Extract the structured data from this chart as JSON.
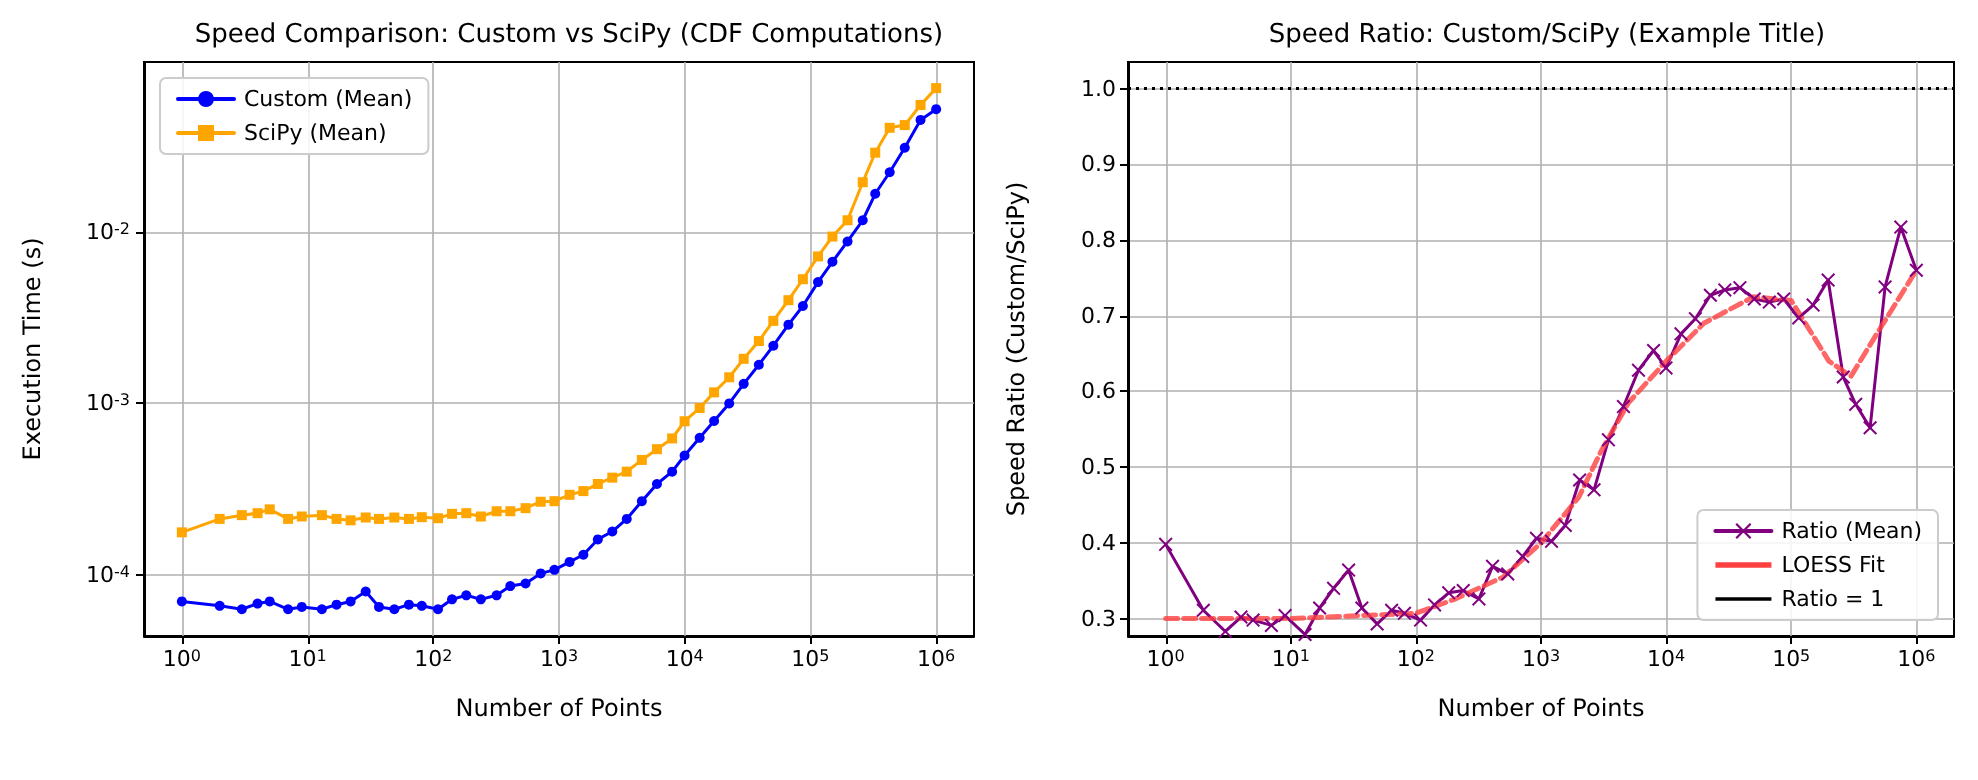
{
  "chart_data": [
    {
      "type": "line",
      "title": "Speed Comparison: Custom vs SciPy (CDF Computations)",
      "xlabel": "Number of Points",
      "ylabel": "Execution Time (s)",
      "x": [
        1,
        2,
        3,
        4,
        5,
        7,
        9,
        13,
        17,
        22,
        29,
        37,
        49,
        64,
        81,
        109,
        141,
        183,
        239,
        319,
        410,
        542,
        715,
        920,
        1214,
        1563,
        2036,
        2654,
        3459,
        4560,
        6013,
        7940,
        9980,
        13150,
        17130,
        22590,
        29450,
        38880,
        50700,
        66840,
        87080,
        114900,
        149600,
        197300,
        260600,
        327600,
        427000,
        562700,
        751300,
        1000000
      ],
      "series": [
        {
          "name": "Custom (Mean)",
          "color": "#0000ff",
          "marker": "circle",
          "values": [
            7e-05,
            6.6e-05,
            6.3e-05,
            6.8e-05,
            7e-05,
            6.3e-05,
            6.5e-05,
            6.3e-05,
            6.7e-05,
            7e-05,
            8e-05,
            6.5e-05,
            6.3e-05,
            6.7e-05,
            6.6e-05,
            6.3e-05,
            7.2e-05,
            7.6e-05,
            7.2e-05,
            7.6e-05,
            8.6e-05,
            8.9e-05,
            0.000102,
            0.000107,
            0.000119,
            0.000131,
            0.000161,
            0.000179,
            0.000212,
            0.000269,
            0.000339,
            0.0004,
            0.000497,
            0.00063,
            0.00079,
            0.001,
            0.0013,
            0.00168,
            0.00217,
            0.00288,
            0.0037,
            0.0051,
            0.0067,
            0.0088,
            0.0117,
            0.0167,
            0.0223,
            0.031,
            0.045,
            0.052
          ]
        },
        {
          "name": "SciPy (Mean)",
          "color": "#ffa500",
          "marker": "square",
          "values": [
            0.000177,
            0.000212,
            0.000223,
            0.000229,
            0.000241,
            0.000212,
            0.000219,
            0.000223,
            0.000212,
            0.000208,
            0.000216,
            0.000212,
            0.000216,
            0.000212,
            0.000217,
            0.000214,
            0.000227,
            0.000229,
            0.000219,
            0.000235,
            0.000235,
            0.000245,
            0.000267,
            0.000269,
            0.000293,
            0.000308,
            0.000339,
            0.000369,
            0.0004,
            0.000468,
            0.000541,
            0.000625,
            0.000787,
            0.00094,
            0.00116,
            0.00142,
            0.00182,
            0.00231,
            0.00303,
            0.004,
            0.0053,
            0.0072,
            0.0094,
            0.0117,
            0.0195,
            0.029,
            0.0405,
            0.042,
            0.055,
            0.069
          ]
        }
      ],
      "log": "xy",
      "xlim": [
        0.5,
        2000000
      ],
      "ylim": [
        4.4e-05,
        0.098
      ],
      "xticks": [
        {
          "value": 1,
          "label": "10$^{0}$"
        },
        {
          "value": 10,
          "label": "10$^{1}$"
        },
        {
          "value": 100,
          "label": "10$^{2}$"
        },
        {
          "value": 1000,
          "label": "10$^{3}$"
        },
        {
          "value": 10000,
          "label": "10$^{4}$"
        },
        {
          "value": 100000,
          "label": "10$^{5}$"
        },
        {
          "value": 1000000,
          "label": "10$^{6}$"
        }
      ],
      "yticks": [
        {
          "value": 0.0001,
          "label": "10$^{-4}$"
        },
        {
          "value": 0.001,
          "label": "10$^{-3}$"
        },
        {
          "value": 0.01,
          "label": "10$^{-2}$"
        }
      ],
      "grid": true,
      "legend": "top left",
      "line_style": "solid"
    },
    {
      "type": "line",
      "title": "Speed Ratio: Custom/SciPy (Example Title)",
      "xlabel": "Number of Points",
      "ylabel": "Speed Ratio (Custom/SciPy)",
      "x": [
        1,
        2,
        3,
        4,
        5,
        7,
        9,
        13,
        17,
        22,
        29,
        37,
        49,
        64,
        81,
        109,
        141,
        183,
        239,
        319,
        410,
        542,
        715,
        920,
        1214,
        1563,
        2036,
        2654,
        3459,
        4560,
        6013,
        7940,
        9980,
        13150,
        17130,
        22590,
        29450,
        38880,
        50700,
        66840,
        87080,
        114900,
        149600,
        197300,
        260600,
        327600,
        427000,
        562700,
        751300,
        1000000
      ],
      "series": [
        {
          "name": "Ratio (Mean)",
          "color": "#800080",
          "marker": "cross",
          "line_style": "solid",
          "values": [
            0.398,
            0.311,
            0.283,
            0.302,
            0.298,
            0.291,
            0.304,
            0.279,
            0.314,
            0.34,
            0.364,
            0.314,
            0.293,
            0.311,
            0.307,
            0.298,
            0.318,
            0.334,
            0.337,
            0.326,
            0.369,
            0.359,
            0.382,
            0.406,
            0.402,
            0.423,
            0.483,
            0.47,
            0.536,
            0.58,
            0.628,
            0.654,
            0.631,
            0.676,
            0.696,
            0.727,
            0.734,
            0.737,
            0.722,
            0.718,
            0.722,
            0.697,
            0.714,
            0.747,
            0.619,
            0.583,
            0.552,
            0.738,
            0.817,
            0.76
          ]
        },
        {
          "name": "LOESS Fit",
          "color": "#ff4040",
          "marker": "none",
          "line_style": "dashed",
          "x": [
            1,
            10,
            100,
            200,
            500,
            1000,
            2000,
            3000,
            5000,
            10000,
            20000,
            50000,
            100000,
            200000,
            300000,
            500000,
            1000000
          ],
          "values": [
            0.3,
            0.3,
            0.307,
            0.325,
            0.355,
            0.4,
            0.46,
            0.52,
            0.585,
            0.64,
            0.69,
            0.725,
            0.72,
            0.64,
            0.62,
            0.68,
            0.76
          ]
        }
      ],
      "ref_lines": [
        {
          "axis": "y",
          "value": 1,
          "label": "Ratio = 1",
          "color": "#000000",
          "line_style": "dotted"
        }
      ],
      "log": "x",
      "xlim": [
        0.5,
        2000000
      ],
      "ylim": [
        0.277,
        1.035
      ],
      "xticks": [
        {
          "value": 1,
          "label": "10$^{0}$"
        },
        {
          "value": 10,
          "label": "10$^{1}$"
        },
        {
          "value": 100,
          "label": "10$^{2}$"
        },
        {
          "value": 1000,
          "label": "10$^{3}$"
        },
        {
          "value": 10000,
          "label": "10$^{4}$"
        },
        {
          "value": 100000,
          "label": "10$^{5}$"
        },
        {
          "value": 1000000,
          "label": "10$^{6}$"
        }
      ],
      "yticks": [
        0.3,
        0.4,
        0.5,
        0.6,
        0.7,
        0.8,
        0.9,
        {
          "value": 1,
          "label": "1.0"
        }
      ],
      "grid": true,
      "legend": "bottom right"
    }
  ]
}
